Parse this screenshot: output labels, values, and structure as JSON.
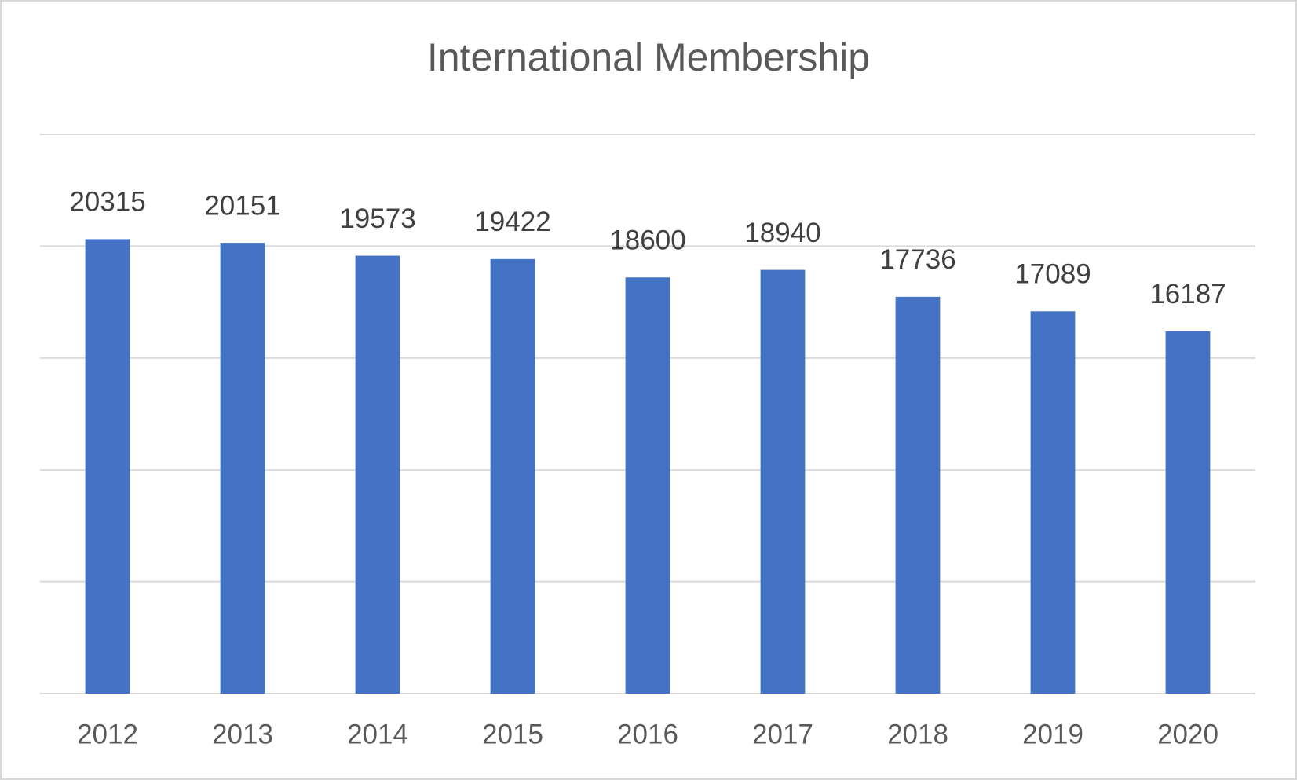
{
  "chart_data": {
    "type": "bar",
    "title": "International Membership",
    "categories": [
      "2012",
      "2013",
      "2014",
      "2015",
      "2016",
      "2017",
      "2018",
      "2019",
      "2020"
    ],
    "values": [
      20315,
      20151,
      19573,
      19422,
      18600,
      18940,
      17736,
      17089,
      16187
    ],
    "color": "#4472c4",
    "ylim": [
      0,
      25000
    ],
    "yticks": [
      0,
      5000,
      10000,
      15000,
      20000,
      25000
    ],
    "grid": true
  }
}
